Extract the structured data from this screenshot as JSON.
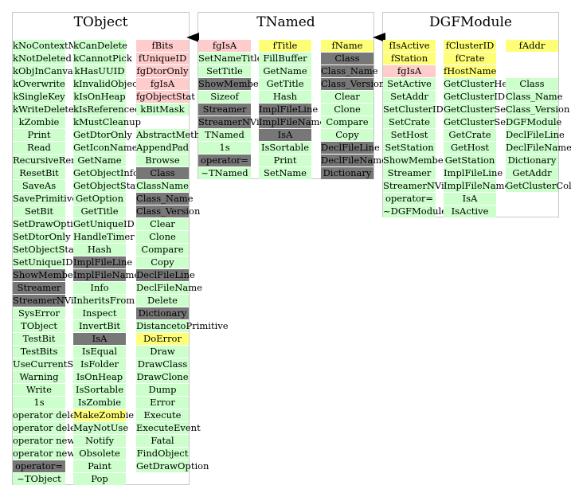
{
  "colors": {
    "green": "#ccffcc",
    "dark": "#777777",
    "pink": "#ffcccc",
    "yellow": "#ffff77"
  },
  "classes": [
    {
      "title": "TObject",
      "columns": [
        [
          {
            "t": "kNoContextMenu",
            "c": "g"
          },
          {
            "t": "kNotDeleted",
            "c": "g"
          },
          {
            "t": "kObjInCanvas",
            "c": "g"
          },
          {
            "t": "kOverwrite",
            "c": "g"
          },
          {
            "t": "kSingleKey",
            "c": "g"
          },
          {
            "t": "kWriteDelete",
            "c": "g"
          },
          {
            "t": "kZombie",
            "c": "g"
          },
          {
            "t": "Print",
            "c": "g"
          },
          {
            "t": "Read",
            "c": "g"
          },
          {
            "t": "RecursiveRemove",
            "c": "g"
          },
          {
            "t": "ResetBit",
            "c": "g"
          },
          {
            "t": "SaveAs",
            "c": "g"
          },
          {
            "t": "SavePrimitive",
            "c": "g"
          },
          {
            "t": "SetBit",
            "c": "g"
          },
          {
            "t": "SetDrawOption",
            "c": "g"
          },
          {
            "t": "SetDtorOnly",
            "c": "g"
          },
          {
            "t": "SetObjectStat",
            "c": "g"
          },
          {
            "t": "SetUniqueID",
            "c": "g"
          },
          {
            "t": "ShowMembers",
            "c": "d"
          },
          {
            "t": "Streamer",
            "c": "d"
          },
          {
            "t": "StreamerNVirtual",
            "c": "d"
          },
          {
            "t": "SysError",
            "c": "g"
          },
          {
            "t": "TObject",
            "c": "g"
          },
          {
            "t": "TestBit",
            "c": "g"
          },
          {
            "t": "TestBits",
            "c": "g"
          },
          {
            "t": "UseCurrentStyle",
            "c": "g"
          },
          {
            "t": "Warning",
            "c": "g"
          },
          {
            "t": "Write",
            "c": "g"
          },
          {
            "t": "1s",
            "c": "g"
          },
          {
            "t": "operator delete",
            "c": "g"
          },
          {
            "t": "operator delete[]",
            "c": "g"
          },
          {
            "t": "operator new",
            "c": "g"
          },
          {
            "t": "operator new[]",
            "c": "g"
          },
          {
            "t": "operator=",
            "c": "d"
          },
          {
            "t": "~TObject",
            "c": "g"
          }
        ],
        [
          {
            "t": "kCanDelete",
            "c": "g"
          },
          {
            "t": "kCannotPick",
            "c": "g"
          },
          {
            "t": "kHasUUID",
            "c": "g"
          },
          {
            "t": "kInvalidObject",
            "c": "g"
          },
          {
            "t": "kIsOnHeap",
            "c": "g"
          },
          {
            "t": "kIsReferenced",
            "c": "g"
          },
          {
            "t": "kMustCleanup",
            "c": "g"
          },
          {
            "t": "GetDtorOnly",
            "c": "g"
          },
          {
            "t": "GetIconName",
            "c": "g"
          },
          {
            "t": "GetName",
            "c": "g"
          },
          {
            "t": "GetObjectInfo",
            "c": "g"
          },
          {
            "t": "GetObjectStat",
            "c": "g"
          },
          {
            "t": "GetOption",
            "c": "g"
          },
          {
            "t": "GetTitle",
            "c": "g"
          },
          {
            "t": "GetUniqueID",
            "c": "g"
          },
          {
            "t": "HandleTimer",
            "c": "g"
          },
          {
            "t": "Hash",
            "c": "g"
          },
          {
            "t": "ImplFileLine",
            "c": "d"
          },
          {
            "t": "ImplFileName",
            "c": "d"
          },
          {
            "t": "Info",
            "c": "g"
          },
          {
            "t": "InheritsFrom",
            "c": "g"
          },
          {
            "t": "Inspect",
            "c": "g"
          },
          {
            "t": "InvertBit",
            "c": "g"
          },
          {
            "t": "IsA",
            "c": "d"
          },
          {
            "t": "IsEqual",
            "c": "g"
          },
          {
            "t": "IsFolder",
            "c": "g"
          },
          {
            "t": "IsOnHeap",
            "c": "g"
          },
          {
            "t": "IsSortable",
            "c": "g"
          },
          {
            "t": "IsZombie",
            "c": "g"
          },
          {
            "t": "MakeZombie",
            "c": "y"
          },
          {
            "t": "MayNotUse",
            "c": "g"
          },
          {
            "t": "Notify",
            "c": "g"
          },
          {
            "t": "Obsolete",
            "c": "g"
          },
          {
            "t": "Paint",
            "c": "g"
          },
          {
            "t": "Pop",
            "c": "g"
          }
        ],
        [
          {
            "t": "fBits",
            "c": "p"
          },
          {
            "t": "fUniqueID",
            "c": "p"
          },
          {
            "t": "fgDtorOnly",
            "c": "p"
          },
          {
            "t": "fgIsA",
            "c": "p"
          },
          {
            "t": "fgObjectStat",
            "c": "p"
          },
          {
            "t": "kBitMask",
            "c": "g"
          },
          {
            "t": "",
            "c": "w"
          },
          {
            "t": "AbstractMethod",
            "c": "g"
          },
          {
            "t": "AppendPad",
            "c": "g"
          },
          {
            "t": "Browse",
            "c": "g"
          },
          {
            "t": "Class",
            "c": "d"
          },
          {
            "t": "ClassName",
            "c": "g"
          },
          {
            "t": "Class_Name",
            "c": "d"
          },
          {
            "t": "Class_Version",
            "c": "d"
          },
          {
            "t": "Clear",
            "c": "g"
          },
          {
            "t": "Clone",
            "c": "g"
          },
          {
            "t": "Compare",
            "c": "g"
          },
          {
            "t": "Copy",
            "c": "g"
          },
          {
            "t": "DeclFileLine",
            "c": "d"
          },
          {
            "t": "DeclFileName",
            "c": "g"
          },
          {
            "t": "Delete",
            "c": "g"
          },
          {
            "t": "Dictionary",
            "c": "d"
          },
          {
            "t": "DistancetoPrimitive",
            "c": "g"
          },
          {
            "t": "DoError",
            "c": "y"
          },
          {
            "t": "Draw",
            "c": "g"
          },
          {
            "t": "DrawClass",
            "c": "g"
          },
          {
            "t": "DrawClone",
            "c": "g"
          },
          {
            "t": "Dump",
            "c": "g"
          },
          {
            "t": "Error",
            "c": "g"
          },
          {
            "t": "Execute",
            "c": "g"
          },
          {
            "t": "ExecuteEvent",
            "c": "g"
          },
          {
            "t": "Fatal",
            "c": "g"
          },
          {
            "t": "FindObject",
            "c": "g"
          },
          {
            "t": "GetDrawOption",
            "c": "g"
          }
        ]
      ]
    },
    {
      "title": "TNamed",
      "columns": [
        [
          {
            "t": "fgIsA",
            "c": "p"
          },
          {
            "t": "SetNameTitle",
            "c": "g"
          },
          {
            "t": "SetTitle",
            "c": "g"
          },
          {
            "t": "ShowMembers",
            "c": "d"
          },
          {
            "t": "Sizeof",
            "c": "g"
          },
          {
            "t": "Streamer",
            "c": "d"
          },
          {
            "t": "StreamerNVirtual",
            "c": "d"
          },
          {
            "t": "TNamed",
            "c": "g"
          },
          {
            "t": "1s",
            "c": "g"
          },
          {
            "t": "operator=",
            "c": "d"
          },
          {
            "t": "~TNamed",
            "c": "g"
          }
        ],
        [
          {
            "t": "fTitle",
            "c": "y"
          },
          {
            "t": "FillBuffer",
            "c": "g"
          },
          {
            "t": "GetName",
            "c": "g"
          },
          {
            "t": "GetTitle",
            "c": "g"
          },
          {
            "t": "Hash",
            "c": "g"
          },
          {
            "t": "ImplFileLine",
            "c": "d"
          },
          {
            "t": "ImplFileName",
            "c": "d"
          },
          {
            "t": "IsA",
            "c": "d"
          },
          {
            "t": "IsSortable",
            "c": "g"
          },
          {
            "t": "Print",
            "c": "g"
          },
          {
            "t": "SetName",
            "c": "g"
          }
        ],
        [
          {
            "t": "fName",
            "c": "y"
          },
          {
            "t": "Class",
            "c": "d"
          },
          {
            "t": "Class_Name",
            "c": "d"
          },
          {
            "t": "Class_Version",
            "c": "d"
          },
          {
            "t": "Clear",
            "c": "g"
          },
          {
            "t": "Clone",
            "c": "g"
          },
          {
            "t": "Compare",
            "c": "g"
          },
          {
            "t": "Copy",
            "c": "g"
          },
          {
            "t": "DeclFileLine",
            "c": "d"
          },
          {
            "t": "DeclFileName",
            "c": "d"
          },
          {
            "t": "Dictionary",
            "c": "d"
          }
        ]
      ]
    },
    {
      "title": "DGFModule",
      "columns": [
        [
          {
            "t": "fIsActive",
            "c": "y"
          },
          {
            "t": "fStation",
            "c": "y"
          },
          {
            "t": "fgIsA",
            "c": "p"
          },
          {
            "t": "SetActive",
            "c": "g"
          },
          {
            "t": "SetAddr",
            "c": "g"
          },
          {
            "t": "SetClusterID",
            "c": "g"
          },
          {
            "t": "SetCrate",
            "c": "g"
          },
          {
            "t": "SetHost",
            "c": "g"
          },
          {
            "t": "SetStation",
            "c": "g"
          },
          {
            "t": "ShowMembers",
            "c": "g"
          },
          {
            "t": "Streamer",
            "c": "g"
          },
          {
            "t": "StreamerNVirtual",
            "c": "g"
          },
          {
            "t": "operator=",
            "c": "g"
          },
          {
            "t": "~DGFModule",
            "c": "g"
          }
        ],
        [
          {
            "t": "fClusterID",
            "c": "y"
          },
          {
            "t": "fCrate",
            "c": "y"
          },
          {
            "t": "fHostName",
            "c": "y"
          },
          {
            "t": "GetClusterHexNum",
            "c": "g"
          },
          {
            "t": "GetClusterID",
            "c": "g"
          },
          {
            "t": "GetClusterSegments",
            "c": "g"
          },
          {
            "t": "GetClusterSerial",
            "c": "g"
          },
          {
            "t": "GetCrate",
            "c": "g"
          },
          {
            "t": "GetHost",
            "c": "g"
          },
          {
            "t": "GetStation",
            "c": "g"
          },
          {
            "t": "ImplFileLine",
            "c": "g"
          },
          {
            "t": "ImplFileName",
            "c": "g"
          },
          {
            "t": "IsA",
            "c": "g"
          },
          {
            "t": "IsActive",
            "c": "g"
          }
        ],
        [
          {
            "t": "fAddr",
            "c": "y"
          },
          {
            "t": "",
            "c": "w"
          },
          {
            "t": "",
            "c": "w"
          },
          {
            "t": "Class",
            "c": "g"
          },
          {
            "t": "Class_Name",
            "c": "g"
          },
          {
            "t": "Class_Version",
            "c": "g"
          },
          {
            "t": "DGFModule",
            "c": "g"
          },
          {
            "t": "DeclFileLine",
            "c": "g"
          },
          {
            "t": "DeclFileName",
            "c": "g"
          },
          {
            "t": "Dictionary",
            "c": "g"
          },
          {
            "t": "GetAddr",
            "c": "g"
          },
          {
            "t": "GetClusterColor",
            "c": "g"
          }
        ]
      ]
    }
  ]
}
